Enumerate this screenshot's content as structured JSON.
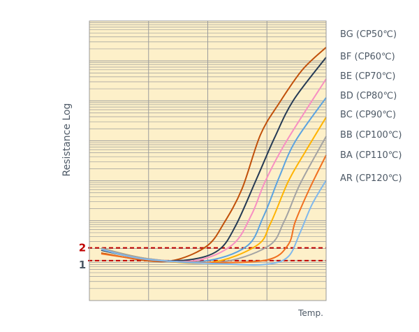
{
  "chart_data": {
    "type": "line",
    "title": "",
    "xlabel": "Temp.",
    "ylabel": "Resistance Log",
    "xlim": [
      0,
      4
    ],
    "ylim": [
      0,
      7
    ],
    "y_scale": "log (decades)",
    "grid": true,
    "legend_placement": "right",
    "thresholds": [
      {
        "label": "2",
        "value": 1.32,
        "color": "#c00000"
      },
      {
        "label": "1",
        "value": 1.0,
        "color": "#c00000",
        "label_color": "#4d5966"
      }
    ],
    "series": [
      {
        "name": "BG (CP50℃)",
        "color": "#c0500a",
        "points": [
          [
            0.2,
            1.19
          ],
          [
            0.97,
            1.0
          ],
          [
            1.47,
            1.02
          ],
          [
            1.99,
            1.37
          ],
          [
            2.27,
            1.93
          ],
          [
            2.58,
            2.8
          ],
          [
            2.89,
            4.15
          ],
          [
            3.21,
            4.95
          ],
          [
            3.6,
            5.78
          ],
          [
            4.0,
            6.34
          ]
        ]
      },
      {
        "name": "BF (CP60℃)",
        "color": "#253a54",
        "points": [
          [
            0.2,
            1.26
          ],
          [
            0.97,
            1.03
          ],
          [
            1.68,
            1.02
          ],
          [
            2.18,
            1.26
          ],
          [
            2.47,
            1.87
          ],
          [
            2.82,
            3.03
          ],
          [
            3.13,
            4.08
          ],
          [
            3.45,
            5.02
          ],
          [
            4.0,
            6.09
          ]
        ]
      },
      {
        "name": "BE (CP70℃)",
        "color": "#f78fc2",
        "points": [
          [
            0.2,
            1.3
          ],
          [
            0.97,
            1.05
          ],
          [
            1.79,
            1.0
          ],
          [
            2.42,
            1.4
          ],
          [
            2.74,
            2.15
          ],
          [
            2.97,
            2.98
          ],
          [
            3.33,
            3.99
          ],
          [
            4.0,
            5.55
          ]
        ]
      },
      {
        "name": "BD (CP80℃)",
        "color": "#5ba3e0",
        "points": [
          [
            0.2,
            1.31
          ],
          [
            0.97,
            1.05
          ],
          [
            1.91,
            0.98
          ],
          [
            2.65,
            1.35
          ],
          [
            2.94,
            2.1
          ],
          [
            3.21,
            3.1
          ],
          [
            3.48,
            3.99
          ],
          [
            4.0,
            5.08
          ]
        ]
      },
      {
        "name": "BC (CP90℃)",
        "color": "#ffb300",
        "points": [
          [
            0.2,
            1.31
          ],
          [
            0.97,
            1.05
          ],
          [
            2.03,
            0.95
          ],
          [
            2.82,
            1.37
          ],
          [
            3.06,
            1.93
          ],
          [
            3.36,
            2.98
          ],
          [
            3.65,
            3.73
          ],
          [
            4.0,
            4.59
          ]
        ]
      },
      {
        "name": "BB (CP100℃)",
        "color": "#a3a3a3",
        "points": [
          [
            0.2,
            1.31
          ],
          [
            0.97,
            1.05
          ],
          [
            2.15,
            0.95
          ],
          [
            3.01,
            1.35
          ],
          [
            3.29,
            1.98
          ],
          [
            3.56,
            2.92
          ],
          [
            4.0,
            4.11
          ]
        ]
      },
      {
        "name": "BA (CP110℃)",
        "color": "#f07020",
        "points": [
          [
            0.2,
            1.17
          ],
          [
            0.97,
            1.02
          ],
          [
            2.03,
            0.95
          ],
          [
            3.01,
            1.02
          ],
          [
            3.36,
            1.4
          ],
          [
            3.48,
            1.98
          ],
          [
            3.72,
            2.8
          ],
          [
            4.0,
            3.64
          ]
        ]
      },
      {
        "name": "AR (CP120℃)",
        "color": "#80b8ec",
        "points": [
          [
            0.2,
            1.28
          ],
          [
            0.97,
            1.03
          ],
          [
            2.38,
            0.91
          ],
          [
            3.01,
            0.91
          ],
          [
            3.36,
            1.1
          ],
          [
            3.56,
            1.7
          ],
          [
            3.76,
            2.4
          ],
          [
            4.0,
            3.01
          ]
        ]
      }
    ]
  }
}
